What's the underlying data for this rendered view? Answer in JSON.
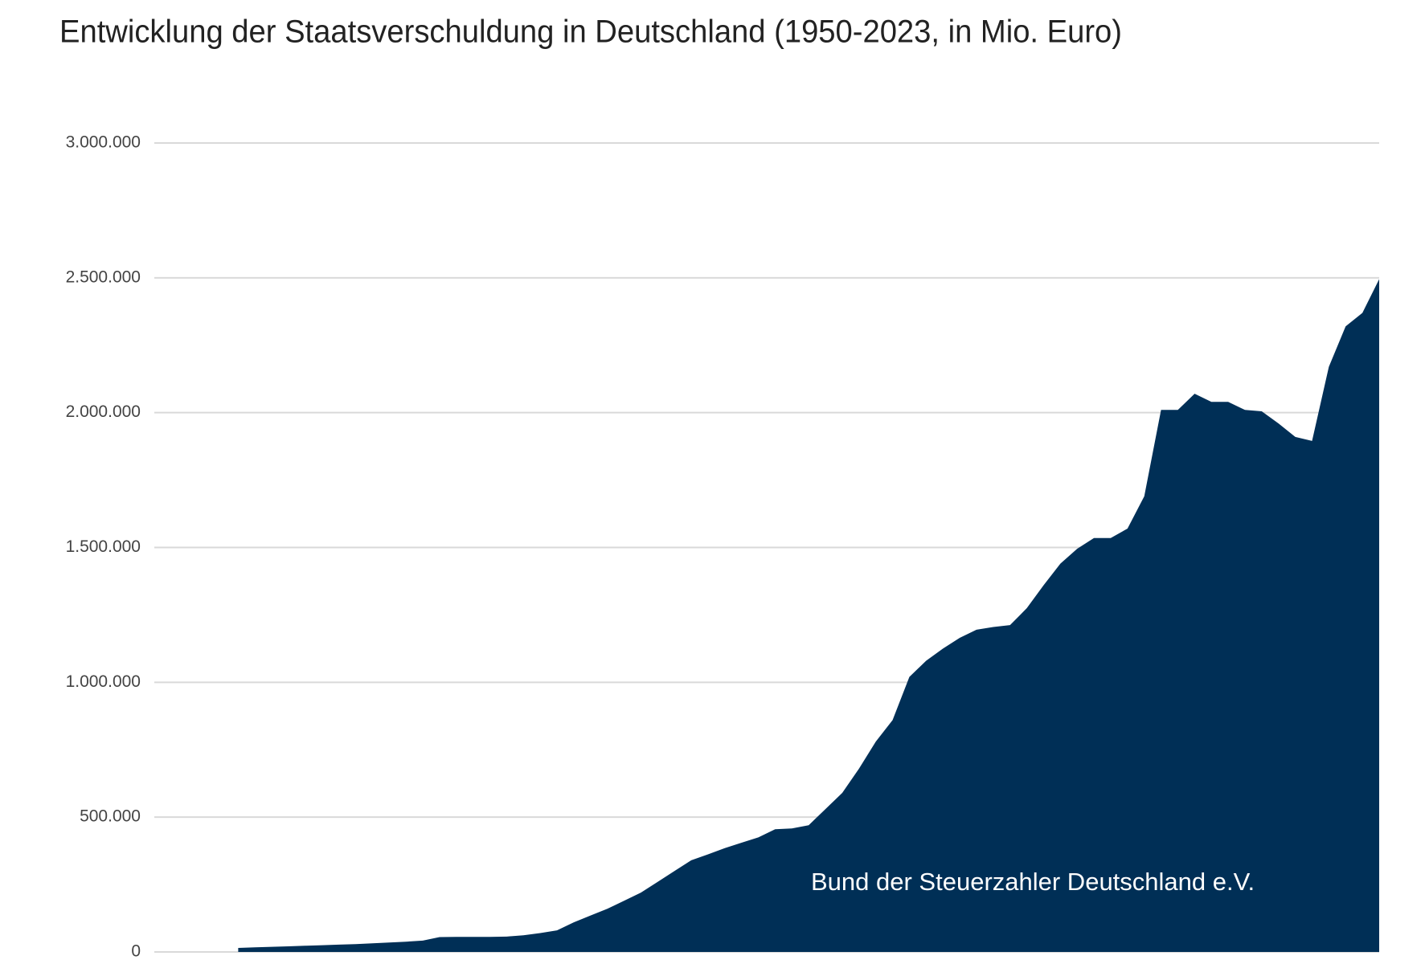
{
  "chart_data": {
    "type": "area",
    "title": "Entwicklung der Staatsverschuldung in Deutschland (1950-2023, in Mio. Euro)",
    "annotation": "Bund der Steuerzahler  Deutschland e.V.",
    "color": "#002f56",
    "values": [
      null,
      null,
      null,
      null,
      null,
      15000,
      17000,
      19000,
      21000,
      23000,
      25000,
      27000,
      29000,
      32000,
      35000,
      38000,
      42000,
      55000,
      56000,
      56000,
      56000,
      57000,
      62000,
      70000,
      80000,
      110000,
      135000,
      160000,
      190000,
      220000,
      260000,
      300000,
      340000,
      362000,
      385000,
      405000,
      425000,
      455000,
      458000,
      470000,
      530000,
      590000,
      680000,
      780000,
      860000,
      1020000,
      1080000,
      1125000,
      1165000,
      1195000,
      1205000,
      1212000,
      1275000,
      1360000,
      1440000,
      1495000,
      1535000,
      1535000,
      1570000,
      1690000,
      2010000,
      2010000,
      2070000,
      2040000,
      2040000,
      2010000,
      2005000,
      1960000,
      1910000,
      1895000,
      2170000,
      2320000,
      2370000,
      2495000
    ],
    "ylim": [
      0,
      3000000
    ],
    "yticks": [
      0,
      {
        "value": 500000,
        "label": "500.000"
      },
      {
        "value": 1000000,
        "label": "1.000.000"
      },
      {
        "value": 1500000,
        "label": "1.500.000"
      },
      {
        "value": 2000000,
        "label": "2.000.000"
      },
      {
        "value": 2500000,
        "label": "2.500.000"
      },
      {
        "value": 3000000,
        "label": "3.000.000"
      }
    ],
    "grid": true
  }
}
